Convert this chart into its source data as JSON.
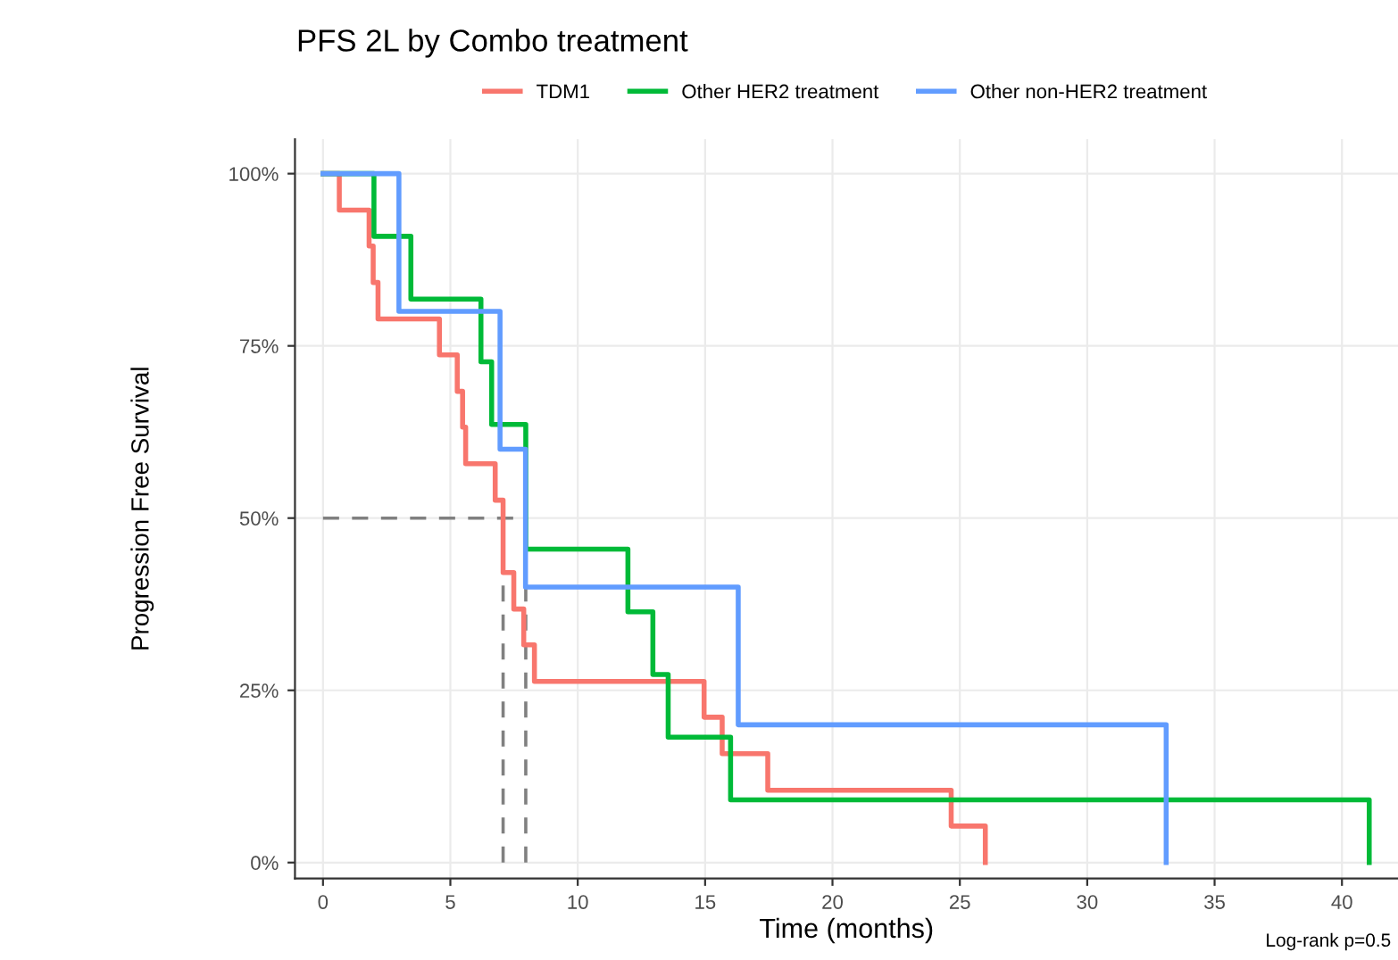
{
  "chart_data": {
    "type": "step",
    "title": "PFS 2L by Combo treatment",
    "xlabel": "Time (months)",
    "ylabel": "Progression Free Survival",
    "series": [
      {
        "name": "TDM1",
        "color": "#f8766d",
        "x": [
          0,
          0.64,
          1.81,
          1.97,
          2.16,
          4.57,
          5.27,
          5.48,
          5.6,
          6.76,
          7.07,
          7.49,
          7.88,
          8.3,
          14.96,
          15.67,
          17.46,
          24.66,
          26.0
        ],
        "values": [
          100,
          94.7,
          89.5,
          84.2,
          78.9,
          73.7,
          68.4,
          63.2,
          57.9,
          52.6,
          42.1,
          36.8,
          31.6,
          26.3,
          21.1,
          15.8,
          10.5,
          5.3,
          0
        ]
      },
      {
        "name": "Other HER2 treatment",
        "color": "#00ba38",
        "x": [
          0,
          2.0,
          3.45,
          6.2,
          6.62,
          7.96,
          11.97,
          12.95,
          13.55,
          16.0,
          41.07
        ],
        "values": [
          100,
          90.9,
          81.8,
          72.7,
          63.6,
          45.5,
          36.4,
          27.3,
          18.2,
          9.1,
          0
        ]
      },
      {
        "name": "Other non-HER2 treatment",
        "color": "#619cff",
        "x": [
          0,
          2.98,
          6.95,
          7.95,
          16.3,
          33.1
        ],
        "values": [
          100,
          80,
          60,
          40,
          20,
          0
        ]
      }
    ],
    "xlim": [
      -1.1,
      42.2
    ],
    "xticks": [
      0,
      5,
      10,
      15,
      20,
      25,
      30,
      35,
      40
    ],
    "ylim": [
      -2.3,
      105
    ],
    "yticks": [
      {
        "value": 0,
        "label": "0%"
      },
      {
        "value": 25,
        "label": "25%"
      },
      {
        "value": 50,
        "label": "50%"
      },
      {
        "value": 75,
        "label": "75%"
      },
      {
        "value": 100,
        "label": "100%"
      }
    ],
    "ref_lines": [
      {
        "axis": "y",
        "value": 50,
        "color": "#808080",
        "line_style": "dashed"
      },
      {
        "axis": "x",
        "value": 7.07,
        "color": "#808080",
        "line_style": "dashed"
      },
      {
        "axis": "x",
        "value": 7.96,
        "color": "#808080",
        "line_style": "dashed"
      }
    ],
    "annotations": [
      "Log-rank p=0.5"
    ],
    "grid": true,
    "legend": "top"
  }
}
